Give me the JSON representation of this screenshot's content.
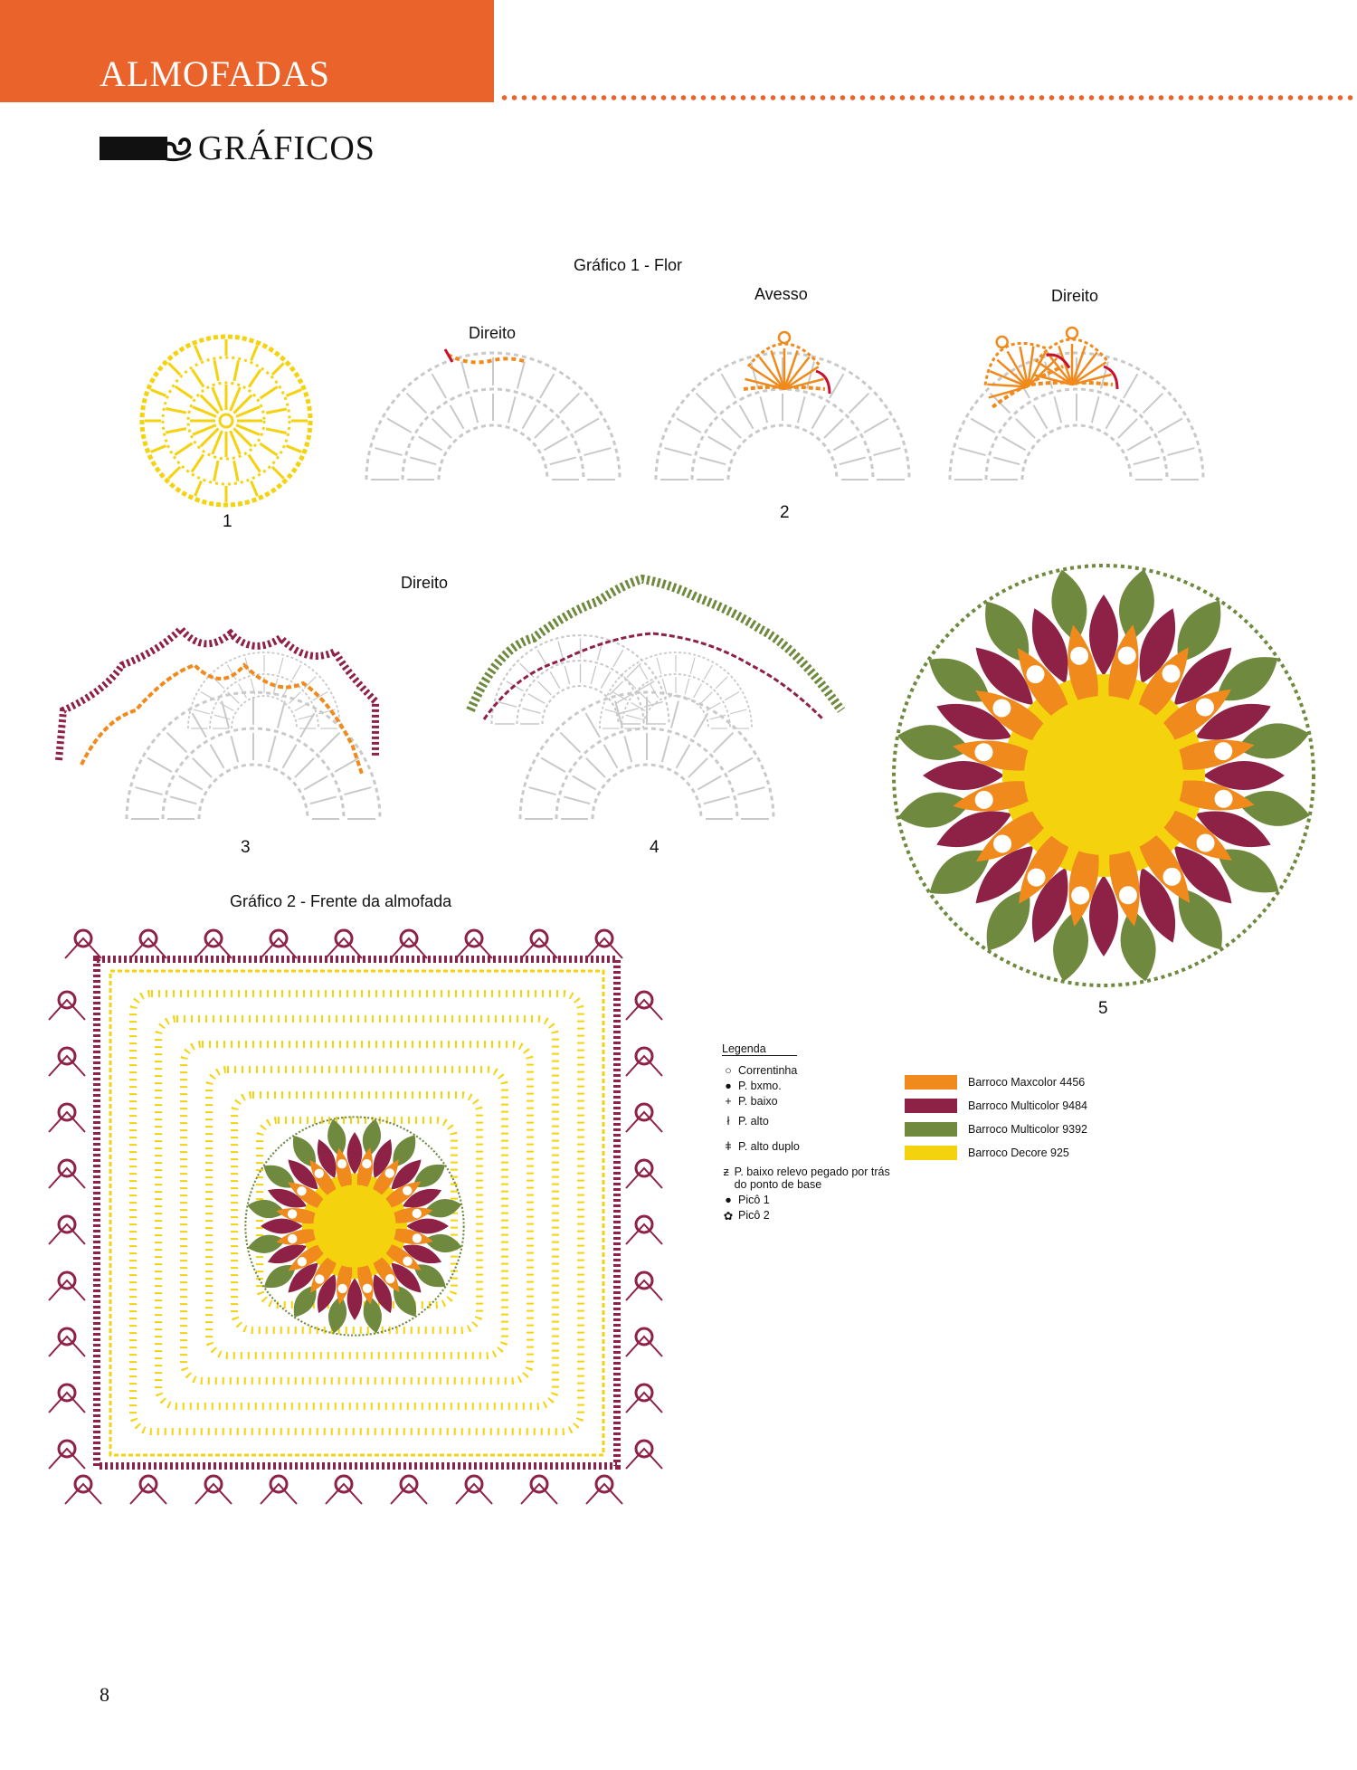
{
  "header": {
    "section": "ALMOFADAS",
    "heading": "GRÁFICOS"
  },
  "chart1": {
    "title": "Gráfico 1 - Flor",
    "labels": {
      "direito_1": "Direito",
      "avesso": "Avesso",
      "direito_2": "Direito",
      "direito_3": "Direito"
    },
    "numbers": [
      "1",
      "2",
      "3",
      "4",
      "5"
    ]
  },
  "chart2": {
    "title": "Gráfico 2 - Frente da almofada"
  },
  "legend": {
    "title": "Legenda",
    "items": [
      {
        "symbol": "chain-icon",
        "label": "Correntinha"
      },
      {
        "symbol": "slip-stitch-icon",
        "label": "P. bxmo."
      },
      {
        "symbol": "single-crochet-icon",
        "label": "P. baixo"
      },
      {
        "symbol": "double-crochet-icon",
        "label": "P. alto"
      },
      {
        "symbol": "treble-crochet-icon",
        "label": "P. alto duplo"
      },
      {
        "symbol": "back-post-icon",
        "label": "P. baixo relevo pegado por trás do ponto de base"
      },
      {
        "symbol": "picot-1-icon",
        "label": "Picô 1"
      },
      {
        "symbol": "picot-2-icon",
        "label": "Picô 2"
      }
    ]
  },
  "yarns": [
    {
      "label": "Barroco Maxcolor 4456",
      "color": "#f08a1c"
    },
    {
      "label": "Barroco Multicolor 9484",
      "color": "#8e2246"
    },
    {
      "label": "Barroco Multicolor 9392",
      "color": "#6f8a3e"
    },
    {
      "label": "Barroco Decore 925",
      "color": "#f5d20e"
    }
  ],
  "colors": {
    "accent": "#e9632a",
    "gray_stitch": "#c9c9c9",
    "yellow": "#f5d20e",
    "orange": "#f08a1c",
    "wine": "#8e2246",
    "green": "#6f8a3e"
  },
  "page_number": "8"
}
